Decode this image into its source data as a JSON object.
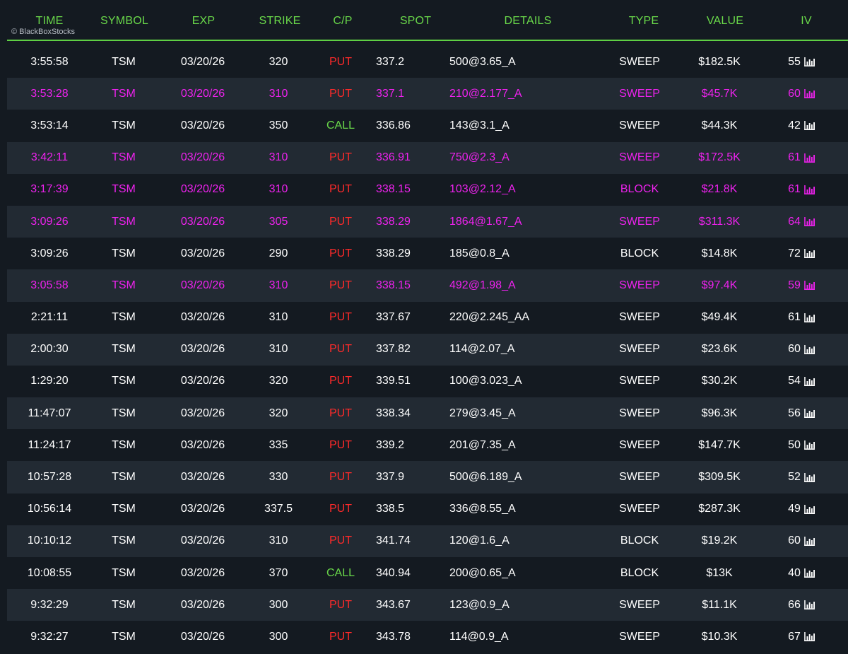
{
  "watermark": "© BlackBoxStocks",
  "columns": {
    "time": "TIME",
    "symbol": "SYMBOL",
    "exp": "EXP",
    "strike": "STRIKE",
    "cp": "C/P",
    "spot": "SPOT",
    "details": "DETAILS",
    "type": "TYPE",
    "value": "VALUE",
    "iv": "IV"
  },
  "colors": {
    "header_green": "#6ad94a",
    "highlight_magenta": "#ee22ee",
    "put_red": "#ff2a2a",
    "call_green": "#6ad94a",
    "background": "#141a21",
    "alt_row": "#222a33"
  },
  "rows": [
    {
      "time": "3:55:58",
      "symbol": "TSM",
      "exp": "03/20/26",
      "strike": "320",
      "cp": "PUT",
      "spot": "337.2",
      "details": "500@3.65_A",
      "type": "SWEEP",
      "value": "$182.5K",
      "iv": "55",
      "highlight": false
    },
    {
      "time": "3:53:28",
      "symbol": "TSM",
      "exp": "03/20/26",
      "strike": "310",
      "cp": "PUT",
      "spot": "337.1",
      "details": "210@2.177_A",
      "type": "SWEEP",
      "value": "$45.7K",
      "iv": "60",
      "highlight": true
    },
    {
      "time": "3:53:14",
      "symbol": "TSM",
      "exp": "03/20/26",
      "strike": "350",
      "cp": "CALL",
      "spot": "336.86",
      "details": "143@3.1_A",
      "type": "SWEEP",
      "value": "$44.3K",
      "iv": "42",
      "highlight": false
    },
    {
      "time": "3:42:11",
      "symbol": "TSM",
      "exp": "03/20/26",
      "strike": "310",
      "cp": "PUT",
      "spot": "336.91",
      "details": "750@2.3_A",
      "type": "SWEEP",
      "value": "$172.5K",
      "iv": "61",
      "highlight": true
    },
    {
      "time": "3:17:39",
      "symbol": "TSM",
      "exp": "03/20/26",
      "strike": "310",
      "cp": "PUT",
      "spot": "338.15",
      "details": "103@2.12_A",
      "type": "BLOCK",
      "value": "$21.8K",
      "iv": "61",
      "highlight": true
    },
    {
      "time": "3:09:26",
      "symbol": "TSM",
      "exp": "03/20/26",
      "strike": "305",
      "cp": "PUT",
      "spot": "338.29",
      "details": "1864@1.67_A",
      "type": "SWEEP",
      "value": "$311.3K",
      "iv": "64",
      "highlight": true
    },
    {
      "time": "3:09:26",
      "symbol": "TSM",
      "exp": "03/20/26",
      "strike": "290",
      "cp": "PUT",
      "spot": "338.29",
      "details": "185@0.8_A",
      "type": "BLOCK",
      "value": "$14.8K",
      "iv": "72",
      "highlight": false
    },
    {
      "time": "3:05:58",
      "symbol": "TSM",
      "exp": "03/20/26",
      "strike": "310",
      "cp": "PUT",
      "spot": "338.15",
      "details": "492@1.98_A",
      "type": "SWEEP",
      "value": "$97.4K",
      "iv": "59",
      "highlight": true
    },
    {
      "time": "2:21:11",
      "symbol": "TSM",
      "exp": "03/20/26",
      "strike": "310",
      "cp": "PUT",
      "spot": "337.67",
      "details": "220@2.245_AA",
      "type": "SWEEP",
      "value": "$49.4K",
      "iv": "61",
      "highlight": false
    },
    {
      "time": "2:00:30",
      "symbol": "TSM",
      "exp": "03/20/26",
      "strike": "310",
      "cp": "PUT",
      "spot": "337.82",
      "details": "114@2.07_A",
      "type": "SWEEP",
      "value": "$23.6K",
      "iv": "60",
      "highlight": false
    },
    {
      "time": "1:29:20",
      "symbol": "TSM",
      "exp": "03/20/26",
      "strike": "320",
      "cp": "PUT",
      "spot": "339.51",
      "details": "100@3.023_A",
      "type": "SWEEP",
      "value": "$30.2K",
      "iv": "54",
      "highlight": false
    },
    {
      "time": "11:47:07",
      "symbol": "TSM",
      "exp": "03/20/26",
      "strike": "320",
      "cp": "PUT",
      "spot": "338.34",
      "details": "279@3.45_A",
      "type": "SWEEP",
      "value": "$96.3K",
      "iv": "56",
      "highlight": false
    },
    {
      "time": "11:24:17",
      "symbol": "TSM",
      "exp": "03/20/26",
      "strike": "335",
      "cp": "PUT",
      "spot": "339.2",
      "details": "201@7.35_A",
      "type": "SWEEP",
      "value": "$147.7K",
      "iv": "50",
      "highlight": false
    },
    {
      "time": "10:57:28",
      "symbol": "TSM",
      "exp": "03/20/26",
      "strike": "330",
      "cp": "PUT",
      "spot": "337.9",
      "details": "500@6.189_A",
      "type": "SWEEP",
      "value": "$309.5K",
      "iv": "52",
      "highlight": false
    },
    {
      "time": "10:56:14",
      "symbol": "TSM",
      "exp": "03/20/26",
      "strike": "337.5",
      "cp": "PUT",
      "spot": "338.5",
      "details": "336@8.55_A",
      "type": "SWEEP",
      "value": "$287.3K",
      "iv": "49",
      "highlight": false
    },
    {
      "time": "10:10:12",
      "symbol": "TSM",
      "exp": "03/20/26",
      "strike": "310",
      "cp": "PUT",
      "spot": "341.74",
      "details": "120@1.6_A",
      "type": "BLOCK",
      "value": "$19.2K",
      "iv": "60",
      "highlight": false
    },
    {
      "time": "10:08:55",
      "symbol": "TSM",
      "exp": "03/20/26",
      "strike": "370",
      "cp": "CALL",
      "spot": "340.94",
      "details": "200@0.65_A",
      "type": "BLOCK",
      "value": "$13K",
      "iv": "40",
      "highlight": false
    },
    {
      "time": "9:32:29",
      "symbol": "TSM",
      "exp": "03/20/26",
      "strike": "300",
      "cp": "PUT",
      "spot": "343.67",
      "details": "123@0.9_A",
      "type": "SWEEP",
      "value": "$11.1K",
      "iv": "66",
      "highlight": false
    },
    {
      "time": "9:32:27",
      "symbol": "TSM",
      "exp": "03/20/26",
      "strike": "300",
      "cp": "PUT",
      "spot": "343.78",
      "details": "114@0.9_A",
      "type": "SWEEP",
      "value": "$10.3K",
      "iv": "67",
      "highlight": false
    }
  ]
}
